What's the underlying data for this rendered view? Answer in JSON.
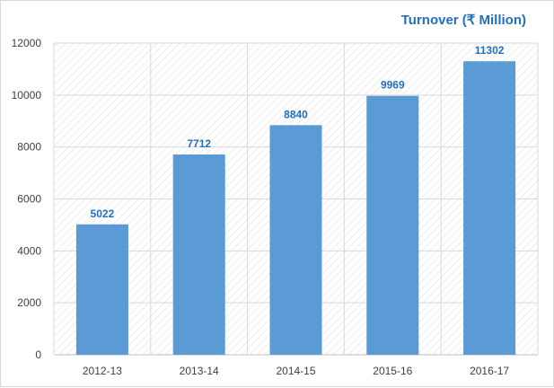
{
  "chart_data": {
    "type": "bar",
    "title": "Turnover (₹ Million)",
    "categories": [
      "2012-13",
      "2013-14",
      "2014-15",
      "2015-16",
      "2016-17"
    ],
    "values": [
      5022,
      7712,
      8840,
      9969,
      11302
    ],
    "data_labels": [
      "5022",
      "7712",
      "8840",
      "9969",
      "11302"
    ],
    "ylim": [
      0,
      12000
    ],
    "yticks": [
      0,
      2000,
      4000,
      6000,
      8000,
      10000,
      12000
    ],
    "ytick_labels": [
      "0",
      "2000",
      "4000",
      "6000",
      "8000",
      "10000",
      "12000"
    ],
    "xlabel": "",
    "ylabel": "",
    "grid": true,
    "legend": "none",
    "colors": {
      "bar": "#5b9bd5",
      "label": "#1f70c1",
      "grid": "#d9d9d9",
      "hatch": "#dcdcdc",
      "axis": "#bfbfbf"
    }
  }
}
